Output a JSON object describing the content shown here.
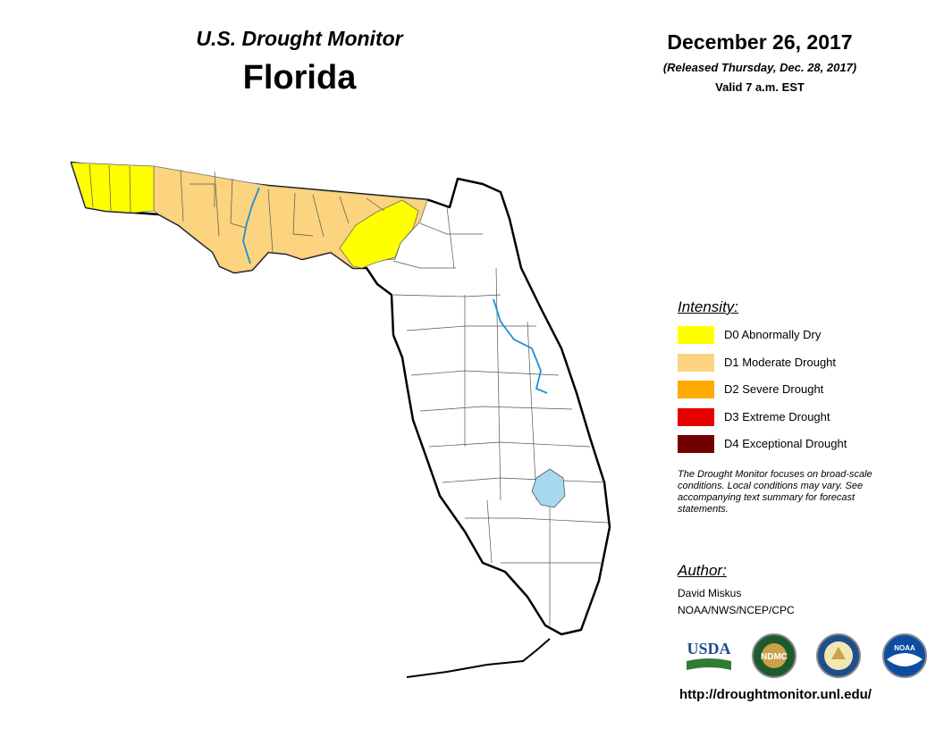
{
  "header": {
    "title": "U.S. Drought Monitor",
    "state": "Florida",
    "date": "December 26, 2017",
    "released": "(Released Thursday, Dec. 28, 2017)",
    "valid": "Valid 7 a.m. EST"
  },
  "legend": {
    "title": "Intensity:",
    "items": [
      {
        "label": "D0 Abnormally Dry",
        "color": "#ffff00"
      },
      {
        "label": "D1 Moderate Drought",
        "color": "#fcd37f"
      },
      {
        "label": "D2 Severe Drought",
        "color": "#ffaa00"
      },
      {
        "label": "D3 Extreme Drought",
        "color": "#e60000"
      },
      {
        "label": "D4 Exceptional Drought",
        "color": "#730000"
      }
    ]
  },
  "note": "The Drought Monitor focuses on broad-scale conditions. Local conditions may vary. See accompanying text summary for forecast statements.",
  "author": {
    "title": "Author:",
    "name": "David Miskus",
    "org": "NOAA/NWS/NCEP/CPC"
  },
  "logos": {
    "usda": "USDA",
    "ndmc": "NDMC",
    "noaa": "NOAA"
  },
  "url": "http://droughtmonitor.unl.edu/",
  "colors": {
    "water": "#a6d8f0",
    "river": "#1f8fd6",
    "d0": "#ffff00",
    "d1": "#fcd37f"
  }
}
